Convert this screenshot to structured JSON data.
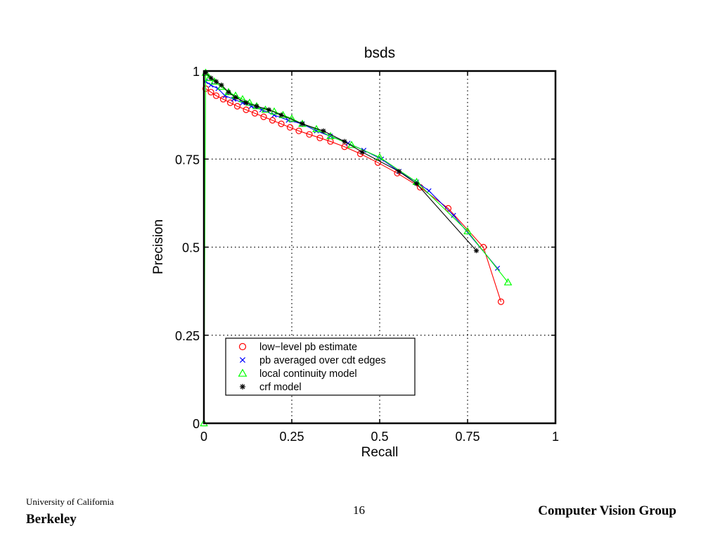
{
  "chart_data": {
    "type": "line",
    "title": "bsds",
    "xlabel": "Recall",
    "ylabel": "Precision",
    "xlim": [
      0,
      1
    ],
    "ylim": [
      0,
      1
    ],
    "xticks": [
      0,
      0.25,
      0.5,
      0.75,
      1
    ],
    "yticks": [
      0,
      0.25,
      0.5,
      0.75,
      1
    ],
    "xtick_labels": [
      "0",
      "0.25",
      "0.5",
      "0.75",
      "1"
    ],
    "ytick_labels": [
      "0",
      "0.25",
      "0.5",
      "0.75",
      "1"
    ],
    "grid": true,
    "legend_position": "lower-left",
    "series": [
      {
        "name": "low−level pb estimate",
        "color": "#ff0000",
        "marker": "circle",
        "x": [
          0.005,
          0.02,
          0.035,
          0.055,
          0.075,
          0.095,
          0.12,
          0.145,
          0.17,
          0.195,
          0.22,
          0.245,
          0.27,
          0.3,
          0.33,
          0.36,
          0.4,
          0.445,
          0.495,
          0.55,
          0.615,
          0.695,
          0.795,
          0.845
        ],
        "y": [
          0.95,
          0.94,
          0.93,
          0.92,
          0.91,
          0.9,
          0.89,
          0.88,
          0.87,
          0.86,
          0.85,
          0.84,
          0.83,
          0.82,
          0.81,
          0.8,
          0.785,
          0.765,
          0.74,
          0.71,
          0.67,
          0.61,
          0.5,
          0.345
        ]
      },
      {
        "name": "pb averaged over cdt edges",
        "color": "#0000ff",
        "marker": "x",
        "x": [
          0.005,
          0.02,
          0.04,
          0.06,
          0.085,
          0.11,
          0.135,
          0.165,
          0.2,
          0.24,
          0.28,
          0.32,
          0.36,
          0.41,
          0.455,
          0.505,
          0.555,
          0.605,
          0.64,
          0.71,
          0.835
        ],
        "y": [
          0.97,
          0.96,
          0.95,
          0.93,
          0.92,
          0.91,
          0.9,
          0.89,
          0.875,
          0.86,
          0.85,
          0.83,
          0.815,
          0.795,
          0.775,
          0.75,
          0.715,
          0.685,
          0.66,
          0.59,
          0.44
        ]
      },
      {
        "name": "local continuity model",
        "color": "#00ff00",
        "marker": "triangle",
        "x": [
          0.0,
          0.005,
          0.015,
          0.03,
          0.05,
          0.07,
          0.09,
          0.11,
          0.13,
          0.15,
          0.175,
          0.2,
          0.225,
          0.25,
          0.28,
          0.32,
          0.36,
          0.42,
          0.5,
          0.605,
          0.75,
          0.865
        ],
        "y": [
          0.0,
          0.995,
          0.98,
          0.97,
          0.955,
          0.94,
          0.93,
          0.92,
          0.91,
          0.9,
          0.89,
          0.885,
          0.875,
          0.865,
          0.85,
          0.835,
          0.815,
          0.79,
          0.755,
          0.685,
          0.545,
          0.4
        ]
      },
      {
        "name": "crf model",
        "color": "#000000",
        "marker": "asterisk",
        "x": [
          0.005,
          0.02,
          0.035,
          0.05,
          0.07,
          0.09,
          0.12,
          0.15,
          0.185,
          0.22,
          0.28,
          0.34,
          0.4,
          0.45,
          0.555,
          0.605,
          0.775
        ],
        "y": [
          0.995,
          0.98,
          0.97,
          0.96,
          0.94,
          0.925,
          0.91,
          0.9,
          0.89,
          0.875,
          0.85,
          0.83,
          0.8,
          0.77,
          0.715,
          0.68,
          0.49
        ]
      }
    ]
  },
  "footer": {
    "university_line1": "University of California",
    "university_line2": "Berkeley",
    "page_number": "16",
    "group_name": "Computer Vision Group"
  }
}
